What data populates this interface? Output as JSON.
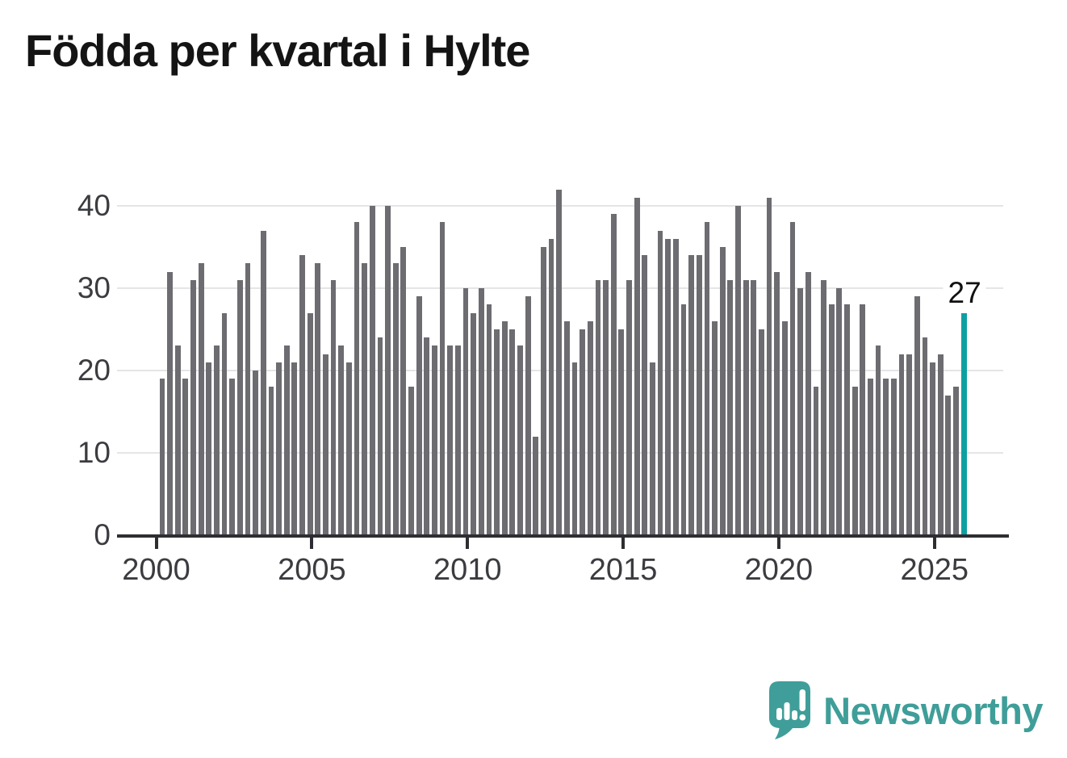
{
  "title": "Födda per kvartal i Hylte",
  "annotation": {
    "label": "27",
    "applies_to": "last-bar"
  },
  "branding": {
    "name": "Newsworthy",
    "icon": "speech-bubble-bar-chart-exclamation-icon",
    "color": "#3f9e99"
  },
  "colors": {
    "bar": "#6c6c71",
    "highlight_bar": "#0ea0a0",
    "gridline": "#e5e5e7",
    "axis": "#2e2e32",
    "title_text": "#141414",
    "tick_label_text": "#3b3c40",
    "annotation_text": "#111111"
  },
  "chart_data": {
    "type": "bar",
    "title": "Födda per kvartal i Hylte",
    "xlabel": "",
    "ylabel": "",
    "x_start_year": 2000,
    "points_per_year": 4,
    "x_tick_labels": [
      "2000",
      "2005",
      "2010",
      "2015",
      "2020",
      "2025"
    ],
    "y_ticks": [
      0,
      10,
      20,
      30,
      40
    ],
    "ylim": [
      0,
      42
    ],
    "grid": "horizontal",
    "legend": "none",
    "highlight_last_bar": true,
    "last_bar_value_label": "27",
    "series": [
      {
        "name": "Födda per kvartal",
        "values": [
          19,
          32,
          23,
          19,
          31,
          33,
          21,
          23,
          27,
          19,
          31,
          33,
          20,
          37,
          18,
          21,
          23,
          21,
          34,
          27,
          33,
          22,
          31,
          23,
          21,
          38,
          33,
          40,
          24,
          40,
          33,
          35,
          18,
          29,
          24,
          23,
          38,
          23,
          23,
          30,
          27,
          30,
          28,
          25,
          26,
          25,
          23,
          29,
          12,
          35,
          36,
          42,
          26,
          21,
          25,
          26,
          31,
          31,
          39,
          25,
          31,
          41,
          34,
          21,
          37,
          36,
          36,
          28,
          34,
          34,
          38,
          26,
          35,
          31,
          40,
          31,
          31,
          25,
          41,
          32,
          26,
          38,
          30,
          32,
          18,
          31,
          28,
          30,
          28,
          18,
          28,
          19,
          23,
          19,
          19,
          22,
          22,
          29,
          24,
          21,
          22,
          17,
          18,
          27
        ]
      }
    ]
  }
}
